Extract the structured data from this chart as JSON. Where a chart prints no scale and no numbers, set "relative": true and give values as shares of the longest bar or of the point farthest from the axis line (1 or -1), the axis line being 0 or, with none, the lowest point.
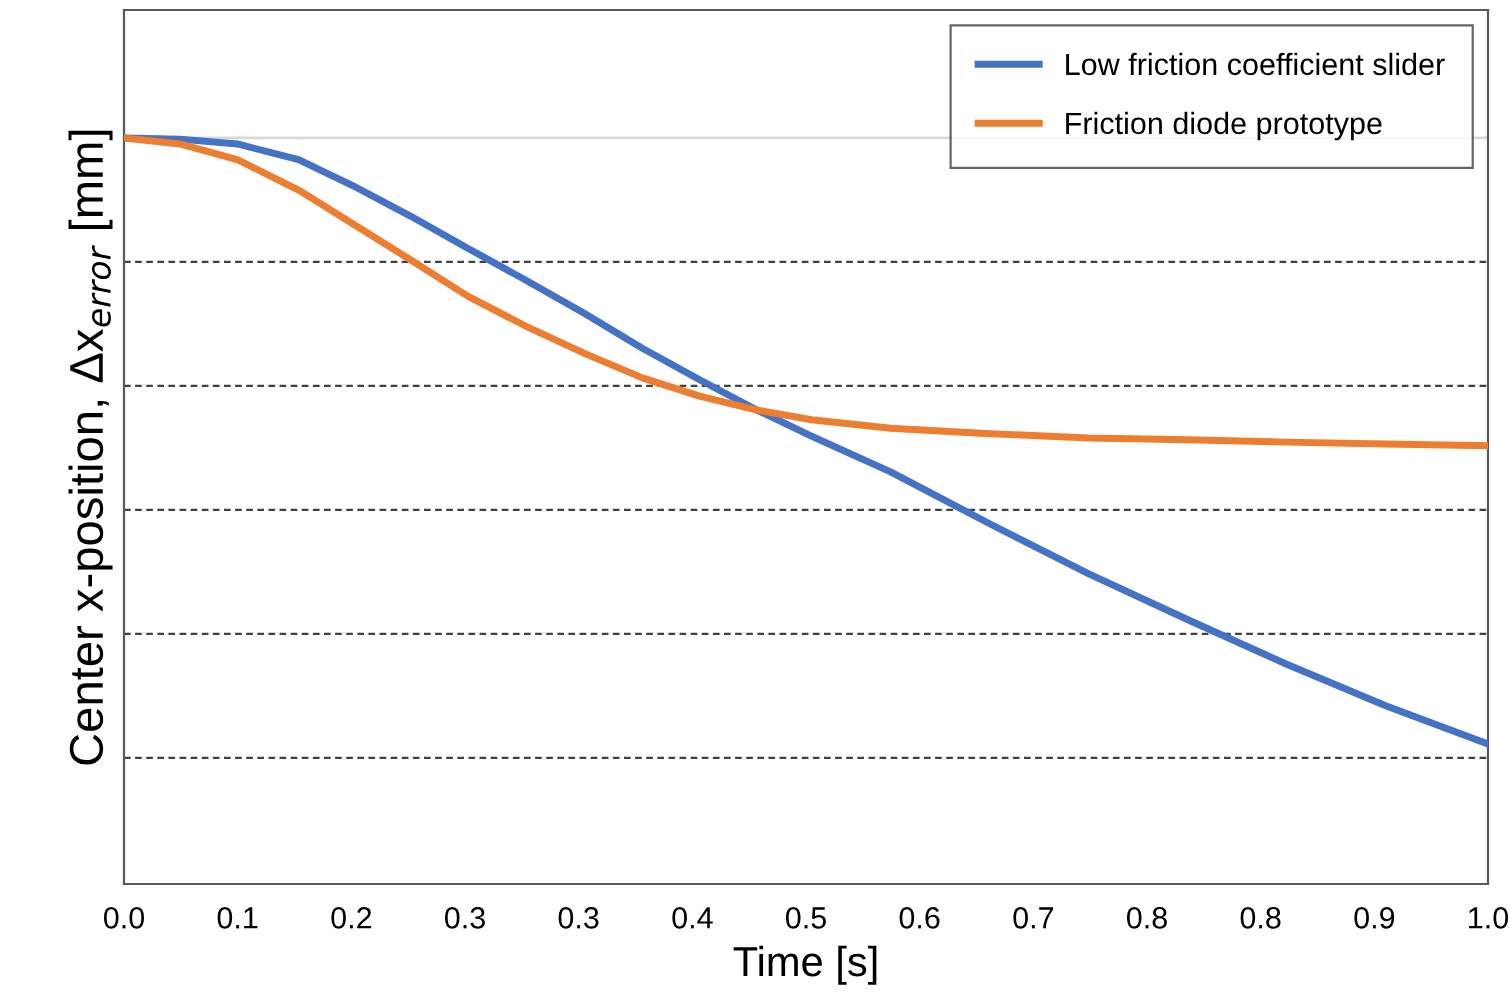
{
  "chart_data": {
    "type": "line",
    "relative": true,
    "xlabel": "Time [s]",
    "ylabel": "Center x-position, Δx$_{error}$ [mm]",
    "x": [
      0,
      0.041,
      0.083,
      0.128,
      0.168,
      0.21,
      0.252,
      0.294,
      0.338,
      0.38,
      0.422,
      0.464,
      0.504,
      0.562,
      0.635,
      0.707,
      0.78,
      0.852,
      0.925,
      1.0
    ],
    "xlim": [
      0,
      1.0
    ],
    "xticks": [
      {
        "value": 0,
        "label": "0.0"
      },
      {
        "value": 0.0833,
        "label": "0.1"
      },
      {
        "value": 0.1667,
        "label": "0.2"
      },
      {
        "value": 0.25,
        "label": "0.3"
      },
      {
        "value": 0.3333,
        "label": "0.3"
      },
      {
        "value": 0.4167,
        "label": "0.4"
      },
      0.5,
      {
        "value": 0.5833,
        "label": "0.6"
      },
      {
        "value": 0.6667,
        "label": "0.7"
      },
      {
        "value": 0.75,
        "label": "0.8"
      },
      {
        "value": 0.8333,
        "label": "0.8"
      },
      {
        "value": 0.9167,
        "label": "0.9"
      },
      {
        "value": 1.0,
        "label": "1.0"
      }
    ],
    "series": [
      {
        "name": "Low friction coefficient slider",
        "color": "#4472c4",
        "values": [
          0,
          -0.002,
          -0.01,
          -0.036,
          -0.079,
          -0.129,
          -0.182,
          -0.234,
          -0.29,
          -0.347,
          -0.399,
          -0.449,
          -0.492,
          -0.551,
          -0.637,
          -0.719,
          -0.795,
          -0.868,
          -0.937,
          -1.0
        ]
      },
      {
        "name": "Friction diode prototype",
        "color": "#ed7d31",
        "values": [
          0,
          -0.01,
          -0.036,
          -0.086,
          -0.142,
          -0.201,
          -0.261,
          -0.31,
          -0.356,
          -0.396,
          -0.426,
          -0.449,
          -0.465,
          -0.479,
          -0.488,
          -0.495,
          -0.498,
          -0.502,
          -0.505,
          -0.508
        ]
      }
    ],
    "grid": "y",
    "legend": "top right",
    "line_style": "solid",
    "marker": "none"
  }
}
